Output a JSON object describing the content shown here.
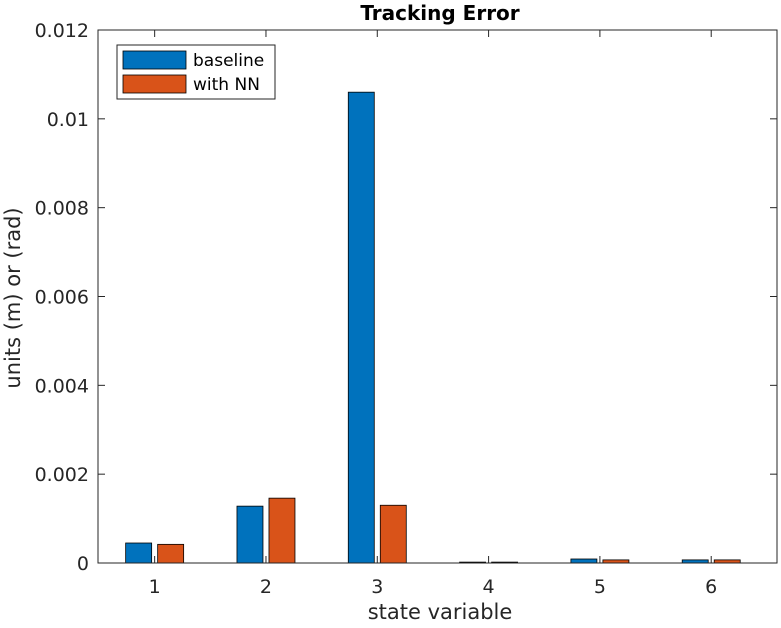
{
  "chart_data": {
    "type": "bar",
    "title": "Tracking Error",
    "xlabel": "state variable",
    "ylabel": "units (m) or (rad)",
    "categories": [
      "1",
      "2",
      "3",
      "4",
      "5",
      "6"
    ],
    "series": [
      {
        "name": "baseline",
        "color": "#0072BD",
        "values": [
          0.00045,
          0.00128,
          0.0106,
          2e-05,
          9e-05,
          7e-05
        ]
      },
      {
        "name": "with NN",
        "color": "#D95319",
        "values": [
          0.00042,
          0.00146,
          0.0013,
          2e-05,
          7e-05,
          7e-05
        ]
      }
    ],
    "ylim": [
      0,
      0.012
    ],
    "yticks": [
      "0",
      "0.002",
      "0.004",
      "0.006",
      "0.008",
      "0.01",
      "0.012"
    ],
    "ytick_values": [
      0,
      0.002,
      0.004,
      0.006,
      0.008,
      0.01,
      0.012
    ],
    "grid": false,
    "legend_position": "top-left"
  }
}
